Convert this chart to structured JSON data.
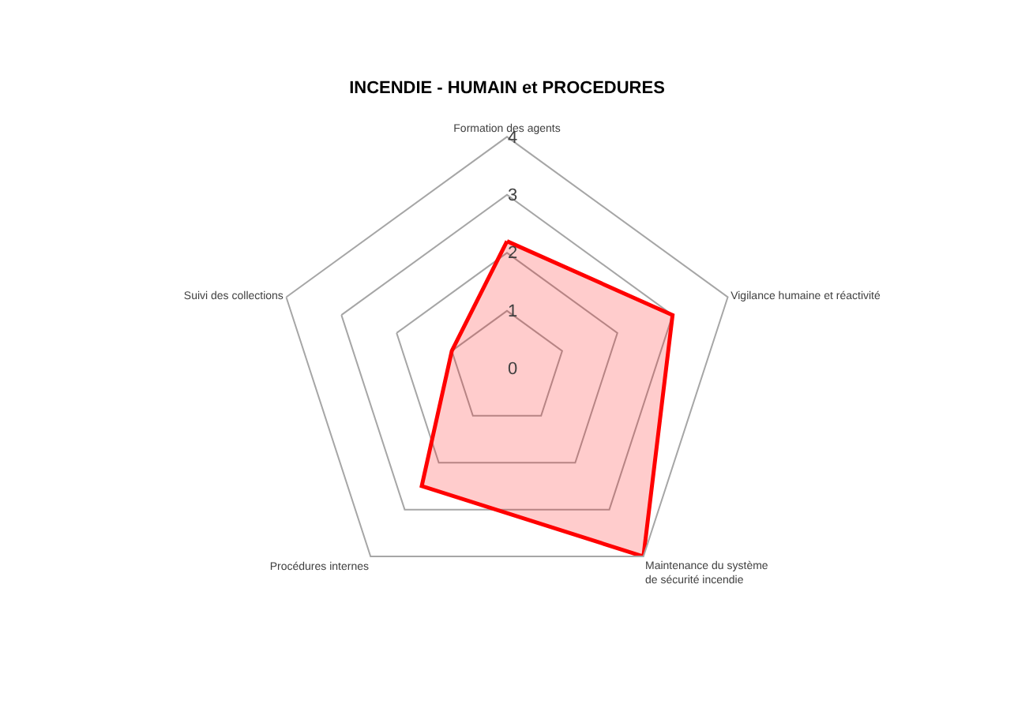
{
  "chart_data": {
    "type": "radar",
    "title": "INCENDIE - HUMAIN et PROCEDURES",
    "categories": [
      "Formation des agents",
      "Vigilance humaine et réactivité",
      "Maintenance du système de sécurité incendie",
      "Procédures internes",
      "Suivi des collections"
    ],
    "series": [
      {
        "color": "#ff0000",
        "values": [
          2.2,
          3,
          4,
          2.5,
          1
        ]
      }
    ],
    "ylim": [
      0,
      4
    ],
    "yticks": [
      0,
      1,
      2,
      3,
      4
    ],
    "grid": true
  }
}
